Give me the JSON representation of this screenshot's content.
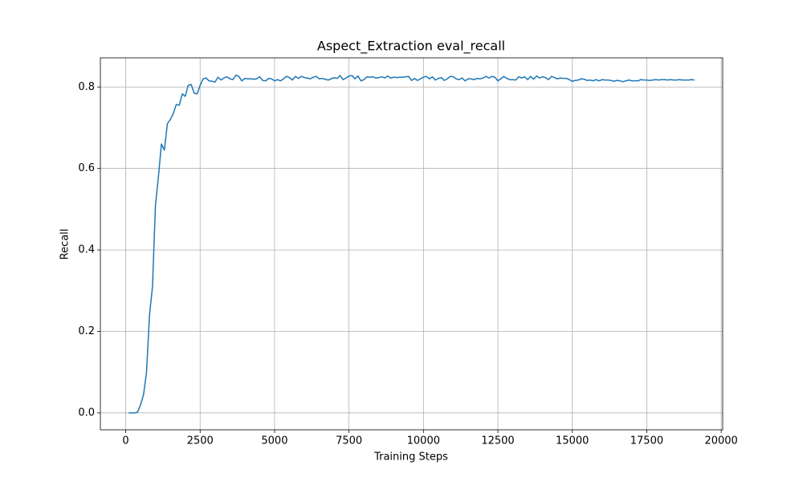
{
  "chart_data": {
    "type": "line",
    "title": "Aspect_Extraction eval_recall",
    "xlabel": "Training Steps",
    "ylabel": "Recall",
    "x": [
      100,
      200,
      300,
      400,
      500,
      600,
      700,
      800,
      900,
      1000,
      1100,
      1200,
      1300,
      1400,
      1500,
      1600,
      1700,
      1800,
      1900,
      2000,
      2100,
      2200,
      2300,
      2400,
      2500,
      2600,
      2700,
      2800,
      2900,
      3000,
      3100,
      3200,
      3300,
      3400,
      3500,
      3600,
      3700,
      3800,
      3900,
      4000,
      4100,
      4200,
      4300,
      4400,
      4500,
      4600,
      4700,
      4800,
      4900,
      5000,
      5100,
      5200,
      5300,
      5400,
      5500,
      5600,
      5700,
      5800,
      5900,
      6000,
      6100,
      6200,
      6300,
      6400,
      6500,
      6600,
      6700,
      6800,
      6900,
      7000,
      7100,
      7200,
      7300,
      7400,
      7500,
      7600,
      7700,
      7800,
      7900,
      8000,
      8100,
      8200,
      8300,
      8400,
      8500,
      8600,
      8700,
      8800,
      8900,
      9000,
      9100,
      9200,
      9300,
      9400,
      9500,
      9600,
      9700,
      9800,
      9900,
      10000,
      10100,
      10200,
      10300,
      10400,
      10500,
      10600,
      10700,
      10800,
      10900,
      11000,
      11100,
      11200,
      11300,
      11400,
      11500,
      11600,
      11700,
      11800,
      11900,
      12000,
      12100,
      12200,
      12300,
      12400,
      12500,
      12600,
      12700,
      12800,
      12900,
      13000,
      13100,
      13200,
      13300,
      13400,
      13500,
      13600,
      13700,
      13800,
      13900,
      14000,
      14100,
      14200,
      14300,
      14400,
      14500,
      14600,
      14700,
      14800,
      14900,
      15000,
      15100,
      15200,
      15300,
      15400,
      15500,
      15600,
      15700,
      15800,
      15900,
      16000,
      16100,
      16200,
      16300,
      16400,
      16500,
      16600,
      16700,
      16800,
      16900,
      17000,
      17100,
      17200,
      17300,
      17400,
      17500,
      17600,
      17700,
      17800,
      17900,
      18000,
      18100,
      18200,
      18300,
      18400,
      18500,
      18600,
      18700,
      18800,
      18900,
      19000,
      19100
    ],
    "series": [
      {
        "color": "#1f77b4",
        "values": [
          0,
          0,
          0,
          0.002,
          0.02,
          0.045,
          0.1,
          0.24,
          0.31,
          0.51,
          0.58,
          0.66,
          0.645,
          0.71,
          0.72,
          0.735,
          0.757,
          0.755,
          0.783,
          0.777,
          0.804,
          0.806,
          0.785,
          0.783,
          0.804,
          0.82,
          0.822,
          0.815,
          0.814,
          0.812,
          0.824,
          0.817,
          0.822,
          0.825,
          0.82,
          0.818,
          0.829,
          0.826,
          0.815,
          0.821,
          0.82,
          0.82,
          0.819,
          0.82,
          0.825,
          0.816,
          0.815,
          0.821,
          0.82,
          0.815,
          0.818,
          0.815,
          0.82,
          0.826,
          0.823,
          0.817,
          0.826,
          0.821,
          0.826,
          0.823,
          0.822,
          0.82,
          0.824,
          0.826,
          0.82,
          0.821,
          0.819,
          0.817,
          0.82,
          0.823,
          0.821,
          0.828,
          0.818,
          0.822,
          0.827,
          0.828,
          0.82,
          0.827,
          0.815,
          0.818,
          0.825,
          0.824,
          0.825,
          0.822,
          0.823,
          0.825,
          0.822,
          0.827,
          0.822,
          0.824,
          0.823,
          0.824,
          0.824,
          0.825,
          0.826,
          0.816,
          0.821,
          0.816,
          0.82,
          0.824,
          0.826,
          0.82,
          0.825,
          0.817,
          0.821,
          0.823,
          0.816,
          0.82,
          0.826,
          0.825,
          0.82,
          0.818,
          0.822,
          0.815,
          0.82,
          0.82,
          0.818,
          0.821,
          0.82,
          0.822,
          0.826,
          0.822,
          0.826,
          0.824,
          0.815,
          0.82,
          0.826,
          0.821,
          0.818,
          0.818,
          0.817,
          0.825,
          0.822,
          0.825,
          0.818,
          0.826,
          0.819,
          0.827,
          0.822,
          0.825,
          0.823,
          0.818,
          0.826,
          0.823,
          0.82,
          0.822,
          0.821,
          0.821,
          0.818,
          0.814,
          0.816,
          0.817,
          0.82,
          0.819,
          0.816,
          0.817,
          0.815,
          0.818,
          0.815,
          0.818,
          0.817,
          0.817,
          0.816,
          0.814,
          0.816,
          0.815,
          0.813,
          0.815,
          0.817,
          0.815,
          0.815,
          0.815,
          0.818,
          0.817,
          0.817,
          0.816,
          0.817,
          0.818,
          0.817,
          0.818,
          0.818,
          0.817,
          0.818,
          0.817,
          0.817,
          0.818,
          0.817,
          0.817,
          0.817,
          0.818,
          0.817
        ]
      }
    ],
    "xlim": [
      -850,
      20050
    ],
    "ylim": [
      -0.0415,
      0.8715
    ],
    "xticks": [
      0,
      2500,
      5000,
      7500,
      10000,
      12500,
      15000,
      17500,
      20000
    ],
    "yticks": [
      {
        "value": 0,
        "label": "0.0"
      },
      0.2,
      0.4,
      0.6,
      0.8
    ],
    "grid": true
  }
}
